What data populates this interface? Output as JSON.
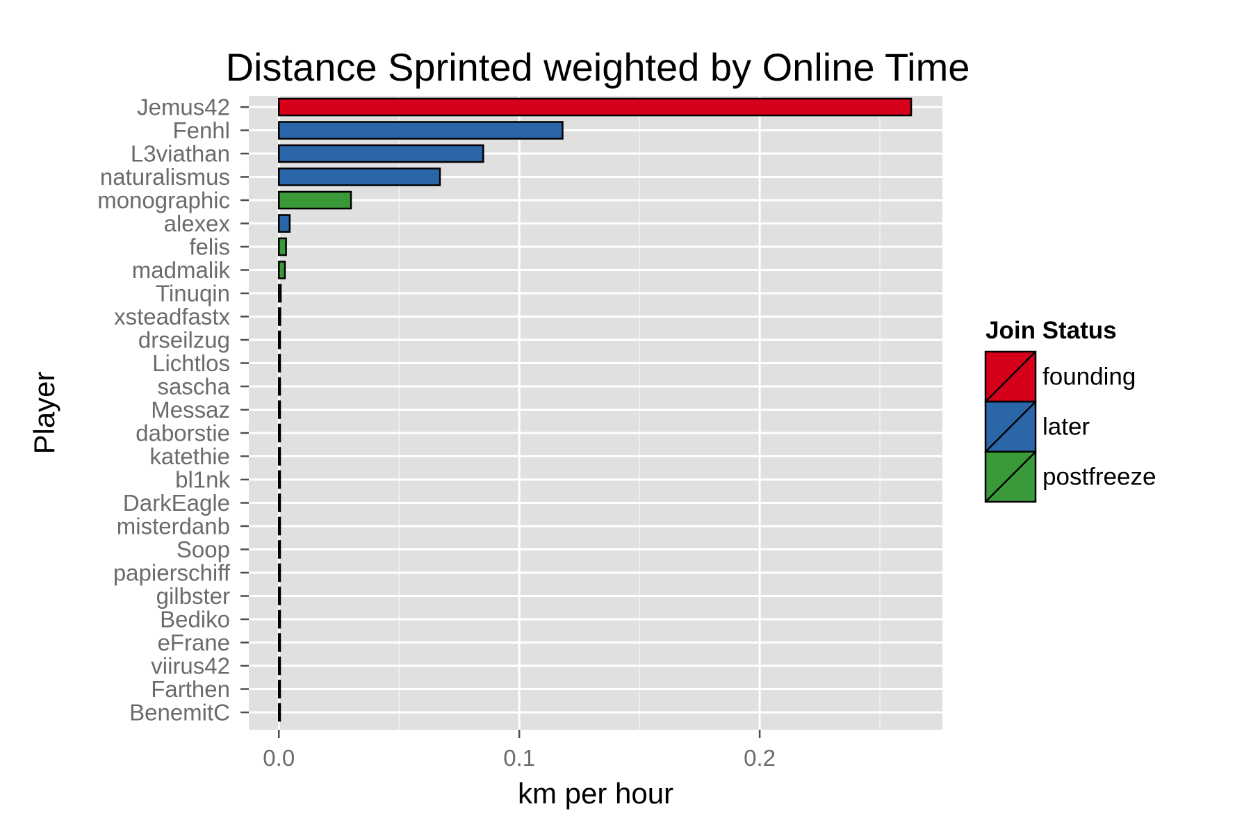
{
  "chart_data": {
    "type": "bar",
    "orientation": "horizontal",
    "title": "Distance Sprinted weighted by Online Time",
    "xlabel": "km per hour",
    "ylabel": "Player",
    "xlim": [
      -0.0125,
      0.276
    ],
    "x_ticks": [
      0.0,
      0.1,
      0.2
    ],
    "x_tick_labels": [
      "0.0",
      "0.1",
      "0.2"
    ],
    "grid": true,
    "legend_position": "right",
    "legend_title": "Join Status",
    "colors": {
      "founding": "#d7001b",
      "later": "#2b66a8",
      "postfreeze": "#3a9a3a"
    },
    "legend": [
      {
        "key": "founding",
        "label": "founding"
      },
      {
        "key": "later",
        "label": "later"
      },
      {
        "key": "postfreeze",
        "label": "postfreeze"
      }
    ],
    "categories": [
      "Jemus42",
      "Fenhl",
      "L3viathan",
      "naturalismus",
      "monographic",
      "alexex",
      "felis",
      "madmalik",
      "Tinuqin",
      "xsteadfastx",
      "drseilzug",
      "Lichtlos",
      "sascha",
      "Messaz",
      "daborstie",
      "katethie",
      "bl1nk",
      "DarkEagle",
      "misterdanb",
      "Soop",
      "papierschiff",
      "gilbster",
      "Bediko",
      "eFrane",
      "viirus42",
      "Farthen",
      "BenemitC"
    ],
    "values": [
      0.263,
      0.118,
      0.085,
      0.067,
      0.03,
      0.0045,
      0.003,
      0.0025,
      0.0008,
      0.0006,
      0.0005,
      0.0005,
      0.0005,
      0.0005,
      0.0005,
      0.0005,
      0.0005,
      0.0005,
      0.0005,
      0.0005,
      0.0005,
      0.0005,
      0.0005,
      0.0005,
      0.0005,
      0.0005,
      0.0005
    ],
    "groups": [
      "founding",
      "later",
      "later",
      "later",
      "postfreeze",
      "later",
      "postfreeze",
      "postfreeze",
      "later",
      "later",
      "later",
      "later",
      "later",
      "later",
      "later",
      "later",
      "later",
      "later",
      "later",
      "later",
      "later",
      "later",
      "later",
      "later",
      "later",
      "later",
      "later"
    ]
  }
}
